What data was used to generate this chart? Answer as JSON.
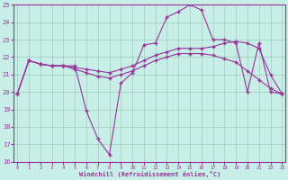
{
  "xlabel": "Windchill (Refroidissement éolien,°C)",
  "background_color": "#c8eee8",
  "grid_color": "#a0ccbb",
  "line_color": "#993399",
  "xlim_min": 0,
  "xlim_max": 23,
  "ylim_min": 16,
  "ylim_max": 25,
  "yticks": [
    16,
    17,
    18,
    19,
    20,
    21,
    22,
    23,
    24,
    25
  ],
  "xticks": [
    0,
    1,
    2,
    3,
    4,
    5,
    6,
    7,
    8,
    9,
    10,
    11,
    12,
    13,
    14,
    15,
    16,
    17,
    18,
    19,
    20,
    21,
    22,
    23
  ],
  "series_jagged": [
    19.9,
    21.8,
    21.6,
    21.5,
    21.5,
    21.5,
    18.9,
    17.3,
    16.4,
    20.5,
    21.1,
    22.7,
    22.8,
    24.3,
    24.6,
    25.0,
    24.7,
    23.0,
    23.0,
    22.8,
    20.0,
    22.8,
    20.0,
    19.9
  ],
  "series_mid": [
    19.9,
    21.8,
    21.6,
    21.5,
    21.5,
    21.4,
    21.3,
    21.2,
    21.1,
    21.3,
    21.5,
    21.8,
    22.1,
    22.3,
    22.5,
    22.5,
    22.5,
    22.6,
    22.8,
    22.9,
    22.8,
    22.5,
    21.0,
    19.9
  ],
  "series_low": [
    19.9,
    21.8,
    21.6,
    21.5,
    21.5,
    21.3,
    21.1,
    20.9,
    20.8,
    21.0,
    21.2,
    21.5,
    21.8,
    22.0,
    22.2,
    22.2,
    22.2,
    22.1,
    21.9,
    21.7,
    21.2,
    20.7,
    20.2,
    19.9
  ]
}
